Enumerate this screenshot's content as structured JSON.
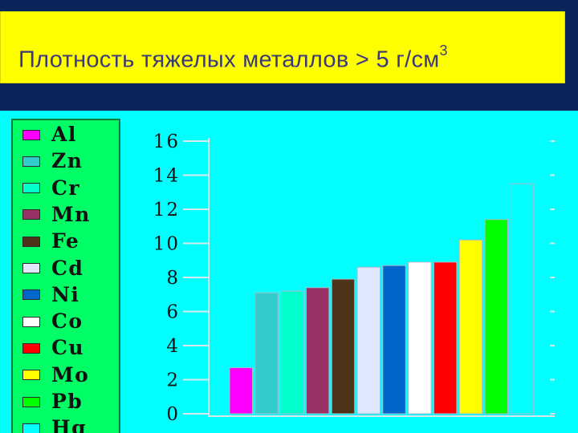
{
  "slide": {
    "title_text": "Плотность тяжелых металлов  > 5 г/см",
    "title_sup": "3"
  },
  "chart_data": {
    "type": "bar",
    "title": "Плотность тяжелых металлов  > 5 г/см3",
    "categories": [
      "Al",
      "Zn",
      "Cr",
      "Mn",
      "Fe",
      "Cd",
      "Ni",
      "Co",
      "Cu",
      "Mo",
      "Pb",
      "Hg"
    ],
    "values": [
      2.7,
      7.1,
      7.2,
      7.4,
      7.9,
      8.6,
      8.7,
      8.9,
      8.9,
      10.2,
      11.4,
      13.5
    ],
    "colors": [
      "#ff00ff",
      "#33cccc",
      "#00ffcc",
      "#993366",
      "#4d3319",
      "#e0e8ff",
      "#0066cc",
      "#ffffff",
      "#ff0000",
      "#ffff00",
      "#00ff00",
      "#00ffff"
    ],
    "yticks": [
      "0",
      "2",
      "4",
      "6",
      "8",
      "10",
      "12",
      "14",
      "16"
    ],
    "ylim": [
      0,
      16
    ],
    "grid": false,
    "legend_position": "left"
  }
}
